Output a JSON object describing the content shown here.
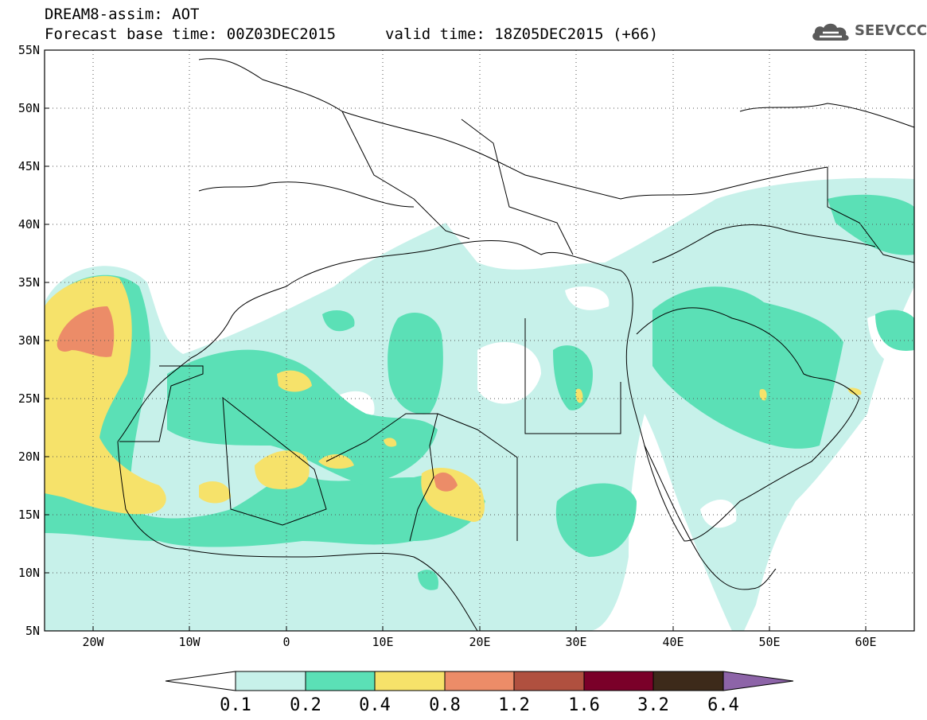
{
  "header": {
    "line1": "DREAM8-assim: AOT",
    "line2_left": "Forecast base time: 00Z03DEC2015",
    "line2_right": "valid time: 18Z05DEC2015 (+66)"
  },
  "logo": {
    "text": "SEEVCCC",
    "icon": "cloud-icon",
    "color": "#5a5a5a"
  },
  "map": {
    "lon_range": [
      -25,
      65
    ],
    "lat_range": [
      5,
      55
    ],
    "lat_ticks": [
      "55N",
      "50N",
      "45N",
      "40N",
      "35N",
      "30N",
      "25N",
      "20N",
      "15N",
      "10N",
      "5N"
    ],
    "lon_ticks": [
      "20W",
      "10W",
      "0",
      "10E",
      "20E",
      "30E",
      "40E",
      "50E",
      "60E"
    ],
    "grid": "dotted"
  },
  "colorbar": {
    "labels": [
      "0.1",
      "0.2",
      "0.4",
      "0.8",
      "1.2",
      "1.6",
      "3.2",
      "6.4"
    ],
    "colors": [
      "#ffffff",
      "#c7f1ea",
      "#5be0b6",
      "#f6e26a",
      "#ec8c68",
      "#b0503f",
      "#7a0029",
      "#3d2a1a",
      "#8d64a8"
    ]
  }
}
